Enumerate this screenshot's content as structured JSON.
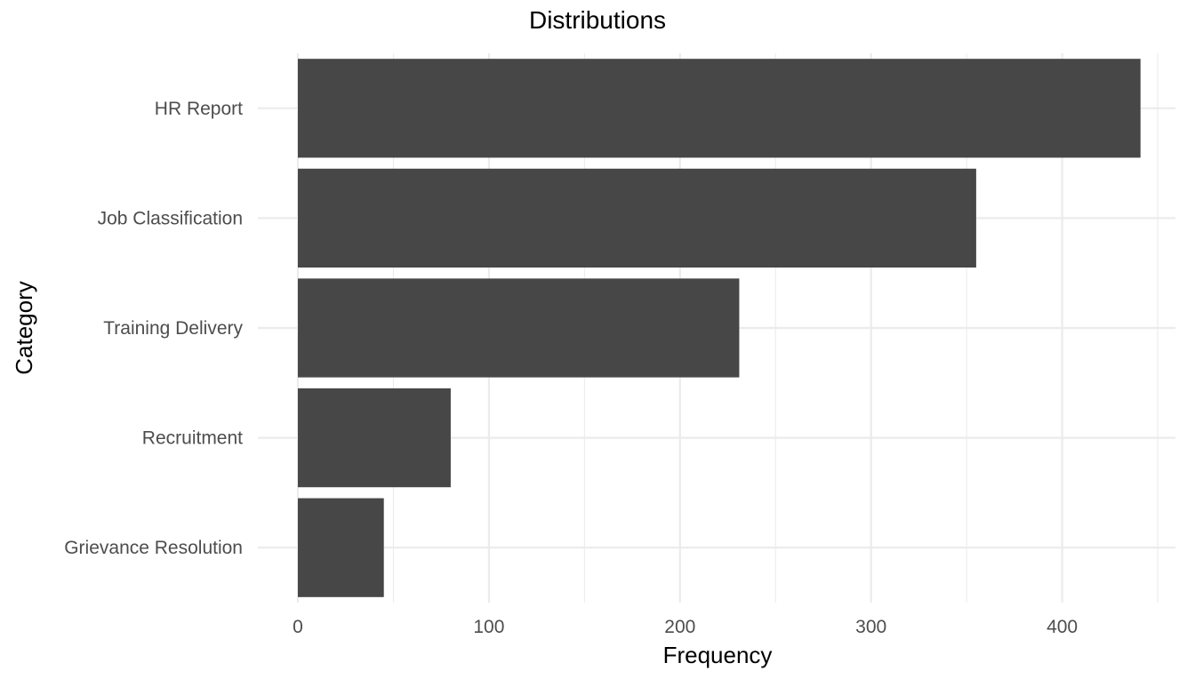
{
  "chart_data": {
    "type": "bar",
    "orientation": "horizontal",
    "title": "Distributions",
    "xlabel": "Frequency",
    "ylabel": "Category",
    "categories": [
      "HR Report",
      "Job Classification",
      "Training Delivery",
      "Recruitment",
      "Grievance Resolution"
    ],
    "values": [
      441,
      355,
      231,
      80,
      45
    ],
    "xlim": [
      0,
      450
    ],
    "x_ticks": [
      0,
      100,
      200,
      300,
      400
    ],
    "x_tick_labels": [
      "0",
      "100",
      "200",
      "300",
      "400"
    ],
    "grid": true,
    "legend": "none",
    "colors": {
      "bar": "#474747",
      "grid": "#ebebeb",
      "tick_text": "#4d4d4d",
      "title": "#000000"
    }
  }
}
